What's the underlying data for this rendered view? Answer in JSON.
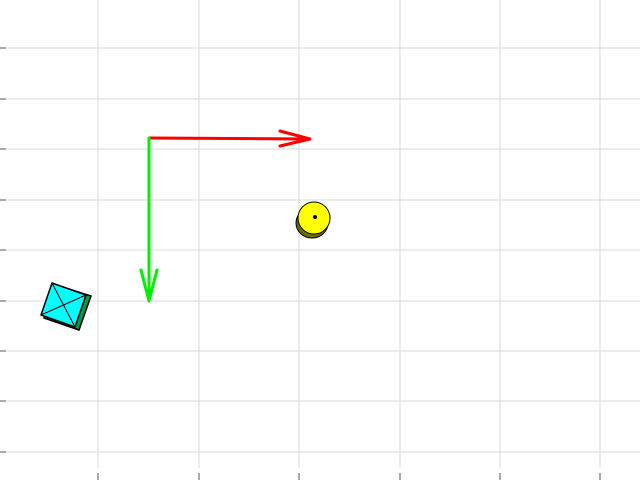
{
  "scene": {
    "background_color": "#ffffff",
    "grid": {
      "enabled": true,
      "line_color": "#d9d9d9",
      "tick_color": "#555555"
    },
    "axes": {
      "x_axis_color": "#ff0000",
      "y_axis_color": "#00ee00"
    },
    "objects": {
      "target": {
        "icon": "yellow-disc-icon",
        "color": "#ffff00",
        "shadow_color": "#6b6b00",
        "outline_color": "#000000"
      },
      "agent": {
        "icon": "cyan-square-marker-icon",
        "color": "#00ffff",
        "shadow_color": "#00994d",
        "outline_color": "#000000"
      }
    }
  }
}
